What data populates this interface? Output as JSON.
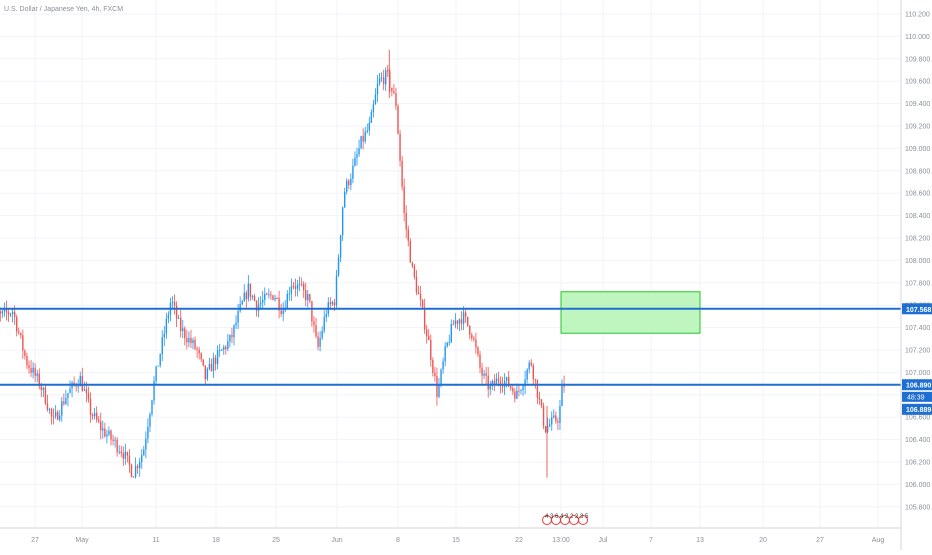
{
  "chart_data": {
    "type": "candlestick",
    "title": "U.S. Dollar / Japanese Yen, 4h, FXCM",
    "xlabel": "",
    "ylabel": "",
    "ylim": [
      105.7,
      110.3
    ],
    "y_ticks": [
      "110.200",
      "110.000",
      "109.800",
      "109.600",
      "109.400",
      "109.200",
      "109.000",
      "108.800",
      "108.600",
      "108.400",
      "108.200",
      "108.000",
      "107.800",
      "107.600",
      "107.400",
      "107.200",
      "107.000",
      "106.800",
      "106.600",
      "106.400",
      "106.200",
      "106.000",
      "105.800"
    ],
    "x_ticks": [
      "27",
      "May",
      "11",
      "18",
      "25",
      "Jun",
      "8",
      "15",
      "22",
      "13:00",
      "Jul",
      "7",
      "13",
      "20",
      "27",
      "Aug"
    ],
    "x_tick_dates": [
      "2020-04-27",
      "2020-05-04",
      "2020-05-11",
      "2020-05-18",
      "2020-05-25",
      "2020-06-01",
      "2020-06-08",
      "2020-06-15",
      "2020-06-22",
      "2020-06-25",
      "2020-07-01",
      "2020-07-07",
      "2020-07-13",
      "2020-07-20",
      "2020-07-27",
      "2020-08-03"
    ],
    "horizontal_lines": [
      {
        "price": 107.568,
        "label": "107.568",
        "color": "#1e6fd1"
      },
      {
        "price": 106.89,
        "label": "106.890",
        "color": "#1e6fd1"
      }
    ],
    "current_price": {
      "price": 106.889,
      "label": "106.889",
      "countdown": "48:39",
      "color": "#1e6fd1"
    },
    "zone": {
      "date_start": "2020-06-25",
      "date_end": "2020-07-13",
      "price_low": 107.35,
      "price_high": 107.72,
      "fill": "#b4f5b4",
      "stroke": "#22c722"
    },
    "event_markers": "4 3 6 4 2 2 2 3 5",
    "up_color": "#2196f3",
    "down_color": "#ef5350",
    "anchors": [
      {
        "date": "2020-04-20",
        "price": 107.7
      },
      {
        "date": "2020-04-22",
        "price": 107.5
      },
      {
        "date": "2020-04-24",
        "price": 107.55
      },
      {
        "date": "2020-04-26",
        "price": 107.1
      },
      {
        "date": "2020-04-28",
        "price": 106.9
      },
      {
        "date": "2020-04-29",
        "price": 106.75
      },
      {
        "date": "2020-04-30",
        "price": 106.55
      },
      {
        "date": "2020-05-02",
        "price": 106.8
      },
      {
        "date": "2020-05-04",
        "price": 106.95
      },
      {
        "date": "2020-05-05",
        "price": 106.65
      },
      {
        "date": "2020-05-06",
        "price": 106.5
      },
      {
        "date": "2020-05-08",
        "price": 106.3
      },
      {
        "date": "2020-05-09",
        "price": 106.1
      },
      {
        "date": "2020-05-10",
        "price": 106.3
      },
      {
        "date": "2020-05-11",
        "price": 106.9
      },
      {
        "date": "2020-05-13",
        "price": 107.65
      },
      {
        "date": "2020-05-14",
        "price": 107.4
      },
      {
        "date": "2020-05-16",
        "price": 107.2
      },
      {
        "date": "2020-05-17",
        "price": 106.95
      },
      {
        "date": "2020-05-18",
        "price": 107.1
      },
      {
        "date": "2020-05-20",
        "price": 107.3
      },
      {
        "date": "2020-05-21",
        "price": 107.55
      },
      {
        "date": "2020-05-22",
        "price": 107.75
      },
      {
        "date": "2020-05-23",
        "price": 107.6
      },
      {
        "date": "2020-05-25",
        "price": 107.7
      },
      {
        "date": "2020-05-26",
        "price": 107.55
      },
      {
        "date": "2020-05-27",
        "price": 107.8
      },
      {
        "date": "2020-05-28",
        "price": 107.75
      },
      {
        "date": "2020-05-29",
        "price": 107.65
      },
      {
        "date": "2020-05-30",
        "price": 107.2
      },
      {
        "date": "2020-05-31",
        "price": 107.55
      },
      {
        "date": "2020-06-01",
        "price": 107.65
      },
      {
        "date": "2020-06-02",
        "price": 108.6
      },
      {
        "date": "2020-06-03",
        "price": 108.8
      },
      {
        "date": "2020-06-04",
        "price": 109.05
      },
      {
        "date": "2020-06-05",
        "price": 109.2
      },
      {
        "date": "2020-06-06",
        "price": 109.6
      },
      {
        "date": "2020-06-07",
        "price": 109.65
      },
      {
        "date": "2020-06-08",
        "price": 109.4
      },
      {
        "date": "2020-06-09",
        "price": 108.4
      },
      {
        "date": "2020-06-10",
        "price": 107.9
      },
      {
        "date": "2020-06-11",
        "price": 107.6
      },
      {
        "date": "2020-06-12",
        "price": 107.25
      },
      {
        "date": "2020-06-13",
        "price": 106.8
      },
      {
        "date": "2020-06-14",
        "price": 107.2
      },
      {
        "date": "2020-06-15",
        "price": 107.45
      },
      {
        "date": "2020-06-16",
        "price": 107.5
      },
      {
        "date": "2020-06-17",
        "price": 107.35
      },
      {
        "date": "2020-06-18",
        "price": 107.0
      },
      {
        "date": "2020-06-19",
        "price": 106.85
      },
      {
        "date": "2020-06-20",
        "price": 106.95
      },
      {
        "date": "2020-06-21",
        "price": 106.9
      },
      {
        "date": "2020-06-22",
        "price": 106.8
      },
      {
        "date": "2020-06-23",
        "price": 107.1
      },
      {
        "date": "2020-06-24",
        "price": 106.5
      },
      {
        "date": "2020-06-25",
        "price": 106.6
      },
      {
        "date": "2020-06-25T12:00",
        "price": 106.889
      }
    ]
  }
}
